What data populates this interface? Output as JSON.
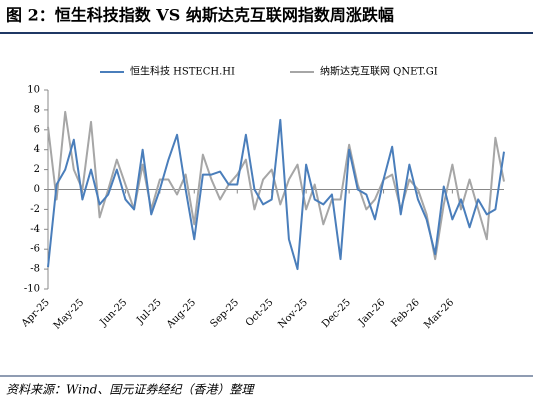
{
  "chart_data": {
    "type": "line",
    "title": "图 2：恒生科技指数 VS 纳斯达克互联网指数周涨跌幅",
    "source": "资料来源：Wind、国元证券经纪（香港）整理",
    "categories": [
      "Apr-25",
      null,
      null,
      null,
      "May-25",
      null,
      null,
      null,
      null,
      "Jun-25",
      null,
      null,
      null,
      "Jul-25",
      null,
      null,
      null,
      "Aug-25",
      null,
      null,
      null,
      null,
      "Sep-25",
      null,
      null,
      null,
      "Oct-25",
      null,
      null,
      null,
      "Nov-25",
      null,
      null,
      null,
      null,
      "Dec-25",
      null,
      null,
      null,
      "Jan-26",
      null,
      null,
      null,
      "Feb-26",
      null,
      null,
      null,
      "Mar-26",
      null,
      null,
      null,
      null,
      null,
      null
    ],
    "series": [
      {
        "name": "恒生科技 HSTECH.HI",
        "color": "#4a7ebb",
        "values": [
          -7.8,
          0.5,
          2,
          5,
          -1,
          2,
          -1.5,
          -0.5,
          2,
          -1,
          -2,
          4,
          -2.5,
          0,
          3,
          5.5,
          0,
          -5,
          1.5,
          1.5,
          1.8,
          0.5,
          0.5,
          5.5,
          0,
          -1.5,
          -1,
          7,
          -5,
          -8,
          2.5,
          -1,
          -1.5,
          -0.5,
          -7,
          4,
          0,
          -0.5,
          -3,
          1,
          4.3,
          -2.5,
          2.5,
          -1,
          -3,
          -6.5,
          0.3,
          -3,
          -1,
          -3.8,
          -1,
          -2.5,
          -2,
          3.8
        ]
      },
      {
        "name": "纳斯达克互联网 QNET.GI",
        "color": "#a6a6a6",
        "values": [
          6.3,
          -1,
          7.8,
          2,
          0,
          6.8,
          -2.8,
          0,
          3,
          0.5,
          -2,
          2.5,
          -2,
          1,
          1,
          -0.5,
          1.5,
          -3.5,
          3.5,
          1,
          -1,
          0.5,
          1.5,
          3,
          -2,
          1,
          2,
          -1.5,
          1,
          2.5,
          -2,
          0.5,
          -3.5,
          -1,
          -1,
          4.5,
          0.5,
          -2,
          -1,
          1,
          1.5,
          -2,
          1,
          0,
          -2.5,
          -7,
          -1.5,
          2.5,
          -2,
          1,
          -2,
          -5,
          5.2,
          0.8
        ]
      }
    ],
    "ylim": [
      -10,
      10
    ],
    "yticks": [
      -10,
      -8,
      -6,
      -4,
      -2,
      0,
      2,
      4,
      6,
      8,
      10
    ],
    "grid": false,
    "legend": "top"
  }
}
